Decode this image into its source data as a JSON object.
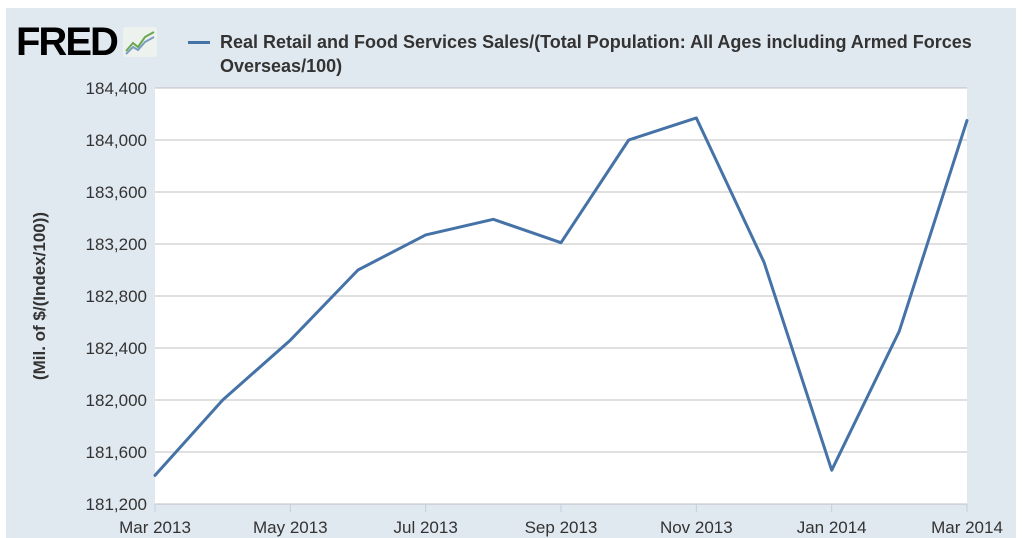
{
  "brand": {
    "name": "FRED",
    "icon": "chart-line-icon"
  },
  "chart_data": {
    "type": "line",
    "title": "",
    "ylabel": "(Mil. of $/(Index/100))",
    "xlabel": "",
    "x": [
      "2013-03",
      "2013-04",
      "2013-05",
      "2013-06",
      "2013-07",
      "2013-08",
      "2013-09",
      "2013-10",
      "2013-11",
      "2013-12",
      "2014-01",
      "2014-02",
      "2014-03"
    ],
    "series": [
      {
        "name": "Real Retail and Food Services Sales/(Total Population: All Ages including Armed Forces Overseas/100)",
        "color": "#4572a7",
        "values": [
          181420,
          182000,
          182460,
          183000,
          183270,
          183390,
          183210,
          184000,
          184170,
          183060,
          181460,
          182530,
          184150
        ]
      }
    ],
    "ylim": [
      181200,
      184400
    ],
    "yticks": [
      "184,400",
      "184,000",
      "183,600",
      "183,200",
      "182,800",
      "182,400",
      "182,000",
      "181,600",
      "181,200"
    ],
    "ytick_values": [
      184400,
      184000,
      183600,
      183200,
      182800,
      182400,
      182000,
      181600,
      181200
    ],
    "xticks": [
      {
        "label": "Mar 2013",
        "index": 0
      },
      {
        "label": "May 2013",
        "index": 2
      },
      {
        "label": "Jul 2013",
        "index": 4
      },
      {
        "label": "Sep 2013",
        "index": 6
      },
      {
        "label": "Nov 2013",
        "index": 8
      },
      {
        "label": "Jan 2014",
        "index": 10
      },
      {
        "label": "Mar 2014",
        "index": 12
      }
    ],
    "grid": true,
    "legend_position": "top"
  }
}
